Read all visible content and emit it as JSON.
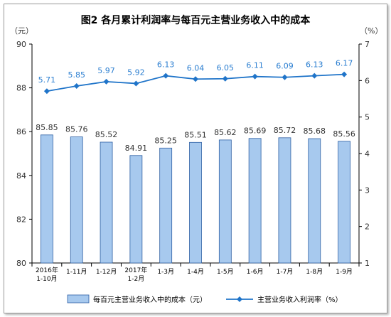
{
  "chart_data": {
    "type": "bar+line",
    "title": "图2  各月累计利润率与每百元主营业务收入中的成本",
    "left_unit": "（元）",
    "right_unit": "（%）",
    "categories": [
      [
        "2016年",
        "1-10月"
      ],
      [
        "1-11月"
      ],
      [
        "1-12月"
      ],
      [
        "2017年",
        "1-2月"
      ],
      [
        "1-3月"
      ],
      [
        "1-4月"
      ],
      [
        "1-5月"
      ],
      [
        "1-6月"
      ],
      [
        "1-7月"
      ],
      [
        "1-8月"
      ],
      [
        "1-9月"
      ]
    ],
    "series": [
      {
        "name": "每百元主营业务收入中的成本（元）",
        "type": "bar",
        "axis": "left",
        "values": [
          85.85,
          85.76,
          85.52,
          84.91,
          85.25,
          85.51,
          85.62,
          85.69,
          85.72,
          85.68,
          85.56
        ]
      },
      {
        "name": "主营业务收入利润率（%）",
        "type": "line",
        "axis": "right",
        "values": [
          5.71,
          5.85,
          5.97,
          5.92,
          6.13,
          6.04,
          6.05,
          6.11,
          6.09,
          6.13,
          6.17
        ]
      }
    ],
    "y_left": {
      "min": 80,
      "max": 90,
      "ticks": [
        80,
        82,
        84,
        86,
        88,
        90
      ]
    },
    "y_right": {
      "min": 1,
      "max": 7,
      "ticks": [
        1,
        2,
        3,
        4,
        5,
        6,
        7
      ]
    },
    "legend_position": "bottom",
    "colors": {
      "bar_fill": "#a7c9ee",
      "bar_stroke": "#2d5fa3",
      "line": "#1f74c9"
    }
  }
}
